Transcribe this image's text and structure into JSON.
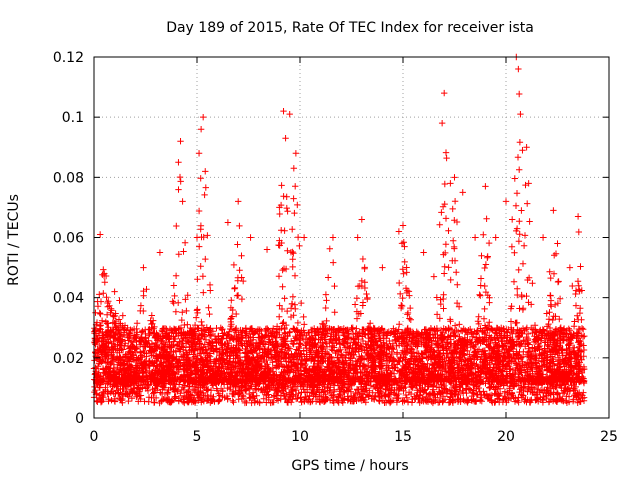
{
  "chart_data": {
    "type": "scatter",
    "title": "Day 189 of 2015, Rate Of TEC Index for receiver ista",
    "xlabel": "GPS time / hours",
    "ylabel": "ROTI / TECUs",
    "xlim": [
      0,
      25
    ],
    "ylim": [
      0,
      0.12
    ],
    "xticks": [
      0,
      5,
      10,
      15,
      20,
      25
    ],
    "xtick_labels": [
      "0",
      "5",
      "10",
      "15",
      "20",
      "25"
    ],
    "yticks": [
      0,
      0.02,
      0.04,
      0.06,
      0.08,
      0.1,
      0.12
    ],
    "ytick_labels": [
      "0",
      "0.02",
      "0.04",
      "0.06",
      "0.08",
      "0.1",
      "0.12"
    ],
    "grid": true,
    "marker": "+",
    "marker_color": "#ff0000",
    "series": [
      {
        "name": "ROTI",
        "x_range": [
          0,
          23.8
        ],
        "typical_range": [
          0.005,
          0.03
        ],
        "envelope": [
          {
            "x": 0.3,
            "max": 0.061
          },
          {
            "x": 0.6,
            "max": 0.048
          },
          {
            "x": 1.2,
            "max": 0.04
          },
          {
            "x": 2.5,
            "max": 0.05
          },
          {
            "x": 4.2,
            "max": 0.092
          },
          {
            "x": 5.3,
            "max": 0.1
          },
          {
            "x": 7.0,
            "max": 0.072
          },
          {
            "x": 9.2,
            "max": 0.102
          },
          {
            "x": 9.8,
            "max": 0.088
          },
          {
            "x": 11.5,
            "max": 0.06
          },
          {
            "x": 13.0,
            "max": 0.066
          },
          {
            "x": 15.0,
            "max": 0.064
          },
          {
            "x": 17.0,
            "max": 0.108
          },
          {
            "x": 17.5,
            "max": 0.08
          },
          {
            "x": 19.0,
            "max": 0.077
          },
          {
            "x": 20.6,
            "max": 0.12
          },
          {
            "x": 21.0,
            "max": 0.09
          },
          {
            "x": 22.3,
            "max": 0.069
          },
          {
            "x": 23.5,
            "max": 0.067
          }
        ],
        "points": [
          [
            0.1,
            0.028
          ],
          [
            0.3,
            0.061
          ],
          [
            0.5,
            0.048
          ],
          [
            0.8,
            0.035
          ],
          [
            1.0,
            0.042
          ],
          [
            2.4,
            0.05
          ],
          [
            3.2,
            0.055
          ],
          [
            4.1,
            0.085
          ],
          [
            4.2,
            0.092
          ],
          [
            4.3,
            0.072
          ],
          [
            5.0,
            0.06
          ],
          [
            5.1,
            0.088
          ],
          [
            5.2,
            0.096
          ],
          [
            5.3,
            0.1
          ],
          [
            5.4,
            0.082
          ],
          [
            6.5,
            0.065
          ],
          [
            7.0,
            0.072
          ],
          [
            7.6,
            0.06
          ],
          [
            8.4,
            0.056
          ],
          [
            9.0,
            0.07
          ],
          [
            9.2,
            0.102
          ],
          [
            9.3,
            0.093
          ],
          [
            9.5,
            0.101
          ],
          [
            9.7,
            0.083
          ],
          [
            9.8,
            0.088
          ],
          [
            10.2,
            0.06
          ],
          [
            11.6,
            0.06
          ],
          [
            12.8,
            0.06
          ],
          [
            13.0,
            0.066
          ],
          [
            14.0,
            0.05
          ],
          [
            14.8,
            0.062
          ],
          [
            15.0,
            0.064
          ],
          [
            16.0,
            0.055
          ],
          [
            16.5,
            0.047
          ],
          [
            16.9,
            0.098
          ],
          [
            17.0,
            0.108
          ],
          [
            17.3,
            0.078
          ],
          [
            17.5,
            0.08
          ],
          [
            17.9,
            0.075
          ],
          [
            18.5,
            0.06
          ],
          [
            19.0,
            0.077
          ],
          [
            19.5,
            0.06
          ],
          [
            20.0,
            0.072
          ],
          [
            20.3,
            0.066
          ],
          [
            20.5,
            0.12
          ],
          [
            20.6,
            0.116
          ],
          [
            20.7,
            0.101
          ],
          [
            20.8,
            0.089
          ],
          [
            21.0,
            0.09
          ],
          [
            21.1,
            0.078
          ],
          [
            21.8,
            0.06
          ],
          [
            22.3,
            0.069
          ],
          [
            22.5,
            0.058
          ],
          [
            23.1,
            0.05
          ],
          [
            23.5,
            0.067
          ]
        ]
      }
    ]
  }
}
